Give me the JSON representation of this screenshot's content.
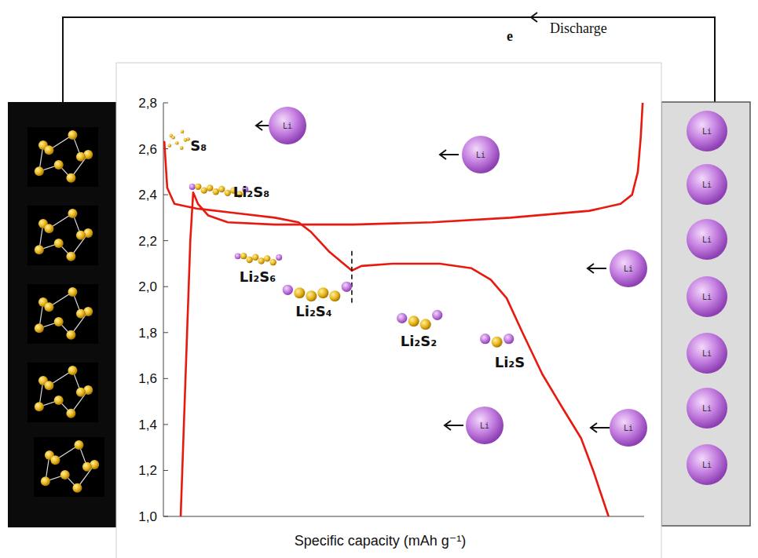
{
  "chart_data": {
    "type": "line",
    "xlabel": "Specific capacity (mAh g⁻¹)",
    "xlim": [
      0,
      100
    ],
    "ylim": [
      1.0,
      2.8
    ],
    "xticks": [],
    "yticks": [
      {
        "value": 1.0,
        "label": "1,0"
      },
      {
        "value": 1.2,
        "label": "1,2"
      },
      {
        "value": 1.4,
        "label": "1,4"
      },
      {
        "value": 1.6,
        "label": "1,6"
      },
      {
        "value": 1.8,
        "label": "1,8"
      },
      {
        "value": 2.0,
        "label": "2,0"
      },
      {
        "value": 2.2,
        "label": "2,2"
      },
      {
        "value": 2.4,
        "label": "2,4"
      },
      {
        "value": 2.6,
        "label": "2,6"
      },
      {
        "value": 2.8,
        "label": "2,8"
      }
    ],
    "tick_labels": "y",
    "grid": false,
    "series": [
      {
        "color": "#e8190f",
        "line_style": "solid",
        "x": [
          0.2,
          0.8,
          2.3,
          6.9,
          15.0,
          23.2,
          28.1,
          30.6,
          34.6,
          39.2,
          41.2,
          47.7,
          57.5,
          64.1,
          68.1,
          71.4,
          74.7,
          78.8,
          82.8,
          86.9,
          89.4,
          91.0,
          92.6
        ],
        "values": [
          2.63,
          2.43,
          2.36,
          2.34,
          2.32,
          2.3,
          2.28,
          2.24,
          2.15,
          2.07,
          2.09,
          2.1,
          2.1,
          2.08,
          2.03,
          1.95,
          1.8,
          1.62,
          1.48,
          1.34,
          1.2,
          1.1,
          1.0
        ]
      },
      {
        "color": "#e8190f",
        "line_style": "solid",
        "x": [
          3.6,
          4.6,
          5.6,
          6.2,
          7.2,
          9.3,
          13.4,
          23.2,
          39.5,
          55.9,
          72.2,
          88.6,
          95.1,
          97.5,
          98.7,
          99.3,
          99.7
        ],
        "values": [
          1.0,
          1.6,
          2.2,
          2.41,
          2.36,
          2.31,
          2.28,
          2.27,
          2.27,
          2.28,
          2.3,
          2.33,
          2.36,
          2.4,
          2.5,
          2.65,
          2.8
        ]
      }
    ],
    "dashed_line": {
      "x": 39.2,
      "y": [
        1.93,
        2.16
      ]
    },
    "annotations": [
      {
        "text": "S₈",
        "x": 5.6,
        "y": 2.59
      },
      {
        "text": "Li₂S₈",
        "x": 14.5,
        "y": 2.39
      },
      {
        "text": "Li₂S₆",
        "x": 15.8,
        "y": 2.02
      },
      {
        "text": "Li₂S₄",
        "x": 27.5,
        "y": 1.87
      },
      {
        "text": "Li₂S₂",
        "x": 49.3,
        "y": 1.74
      },
      {
        "text": "Li₂S",
        "x": 68.9,
        "y": 1.65
      }
    ],
    "circuit": {
      "carrier": "e",
      "label": "Discharge"
    },
    "ion_label": "Li"
  }
}
